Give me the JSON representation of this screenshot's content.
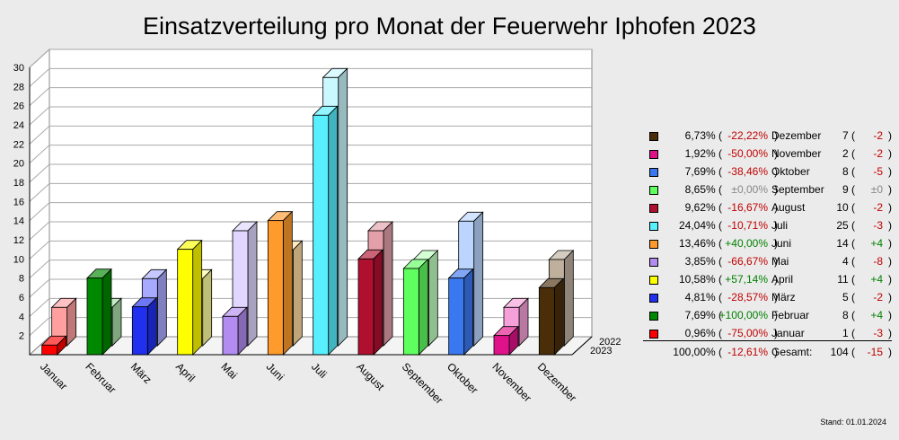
{
  "chart_data": {
    "type": "bar",
    "title": "Einsatzverteilung pro Monat der Feuerwehr Iphofen 2023",
    "categories": [
      "Januar",
      "Februar",
      "März",
      "April",
      "Mai",
      "Juni",
      "Juli",
      "August",
      "September",
      "Oktober",
      "November",
      "Dezember"
    ],
    "series": [
      {
        "name": "2022",
        "values": [
          4,
          4,
          7,
          7,
          12,
          10,
          28,
          12,
          9,
          13,
          4,
          9
        ]
      },
      {
        "name": "2023",
        "values": [
          1,
          8,
          5,
          11,
          4,
          14,
          25,
          10,
          9,
          8,
          2,
          7
        ]
      }
    ],
    "colors_2023": [
      "#ff0000",
      "#008800",
      "#2030ee",
      "#ffff00",
      "#b28cf0",
      "#ff9a2c",
      "#58f0ff",
      "#b01030",
      "#60ff60",
      "#3a78f0",
      "#e0128a",
      "#4a2e0a"
    ],
    "colors_2022": [
      "#ff9f9f",
      "#a8dfa8",
      "#a8aaff",
      "#ffffa0",
      "#e0d6ff",
      "#ffdda0",
      "#c9f8ff",
      "#e4a0aa",
      "#bfffbf",
      "#bbd5ff",
      "#f5a0d8",
      "#bfb09e"
    ],
    "y_ticks": [
      "2",
      "4",
      "6",
      "8",
      "10",
      "12",
      "14",
      "16",
      "18",
      "20",
      "22",
      "24",
      "26",
      "28",
      "30"
    ],
    "ylim": [
      0,
      30
    ],
    "grid": true,
    "legend_position": "right",
    "depth_labels": [
      "2022",
      "2023"
    ]
  },
  "legend": {
    "rows": [
      {
        "pct": "6,73% (",
        "dpct": "-22,22%",
        "dclass": "neg",
        "month": "Dezember",
        "count": "7 (",
        "dcount": "-2",
        "cclass": "neg",
        "close": ")",
        "color": "#4a2e0a"
      },
      {
        "pct": "1,92% (",
        "dpct": "-50,00%",
        "dclass": "neg",
        "month": "November",
        "count": "2 (",
        "dcount": "-2",
        "cclass": "neg",
        "close": ")",
        "color": "#e0128a"
      },
      {
        "pct": "7,69% (",
        "dpct": "-38,46%",
        "dclass": "neg",
        "month": "Oktober",
        "count": "8 (",
        "dcount": "-5",
        "cclass": "neg",
        "close": ")",
        "color": "#3a78f0"
      },
      {
        "pct": "8,65% (",
        "dpct": "±0,00%",
        "dclass": "zer",
        "month": "September",
        "count": "9 (",
        "dcount": "±0",
        "cclass": "zer",
        "close": ")",
        "color": "#60ff60"
      },
      {
        "pct": "9,62% (",
        "dpct": "-16,67%",
        "dclass": "neg",
        "month": "August",
        "count": "10 (",
        "dcount": "-2",
        "cclass": "neg",
        "close": ")",
        "color": "#b01030"
      },
      {
        "pct": "24,04% (",
        "dpct": "-10,71%",
        "dclass": "neg",
        "month": "Juli",
        "count": "25 (",
        "dcount": "-3",
        "cclass": "neg",
        "close": ")",
        "color": "#58f0ff"
      },
      {
        "pct": "13,46% (",
        "dpct": "+40,00%",
        "dclass": "pos",
        "month": "Juni",
        "count": "14 (",
        "dcount": "+4",
        "cclass": "pos",
        "close": ")",
        "color": "#ff9a2c"
      },
      {
        "pct": "3,85% (",
        "dpct": "-66,67%",
        "dclass": "neg",
        "month": "Mai",
        "count": "4 (",
        "dcount": "-8",
        "cclass": "neg",
        "close": ")",
        "color": "#b28cf0"
      },
      {
        "pct": "10,58% (",
        "dpct": "+57,14%",
        "dclass": "pos",
        "month": "April",
        "count": "11 (",
        "dcount": "+4",
        "cclass": "pos",
        "close": ")",
        "color": "#ffff00"
      },
      {
        "pct": "4,81% (",
        "dpct": "-28,57%",
        "dclass": "neg",
        "month": "März",
        "count": "5 (",
        "dcount": "-2",
        "cclass": "neg",
        "close": ")",
        "color": "#2030ee"
      },
      {
        "pct": "7,69% (",
        "dpct": "+100,00%",
        "dclass": "pos",
        "month": "Februar",
        "count": "8 (",
        "dcount": "+4",
        "cclass": "pos",
        "close": ")",
        "color": "#008800"
      },
      {
        "pct": "0,96% (",
        "dpct": "-75,00%",
        "dclass": "neg",
        "month": "Januar",
        "count": "1 (",
        "dcount": "-3",
        "cclass": "neg",
        "close": ")",
        "color": "#ff0000"
      }
    ],
    "total": {
      "pct": "100,00% (",
      "dpct": "-12,61%",
      "dclass": "neg",
      "month": "Gesamt:",
      "count": "104 (",
      "dcount": "-15",
      "cclass": "neg",
      "close": ")"
    }
  },
  "stand": "Stand: 01.01.2024"
}
